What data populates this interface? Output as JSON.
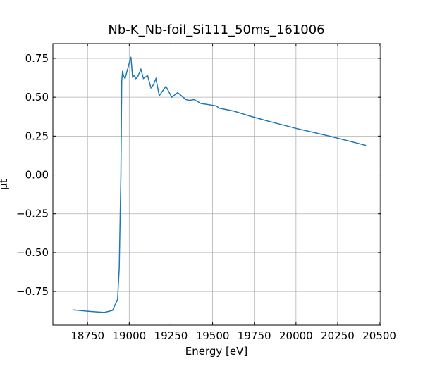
{
  "chart_data": {
    "type": "line",
    "title": "Nb-K_Nb-foil_Si111_50ms_161006",
    "x_label": "Energy [eV]",
    "y_label": "μt",
    "series": [
      {
        "name": "μt",
        "color": "#1f77b4",
        "x": [
          18660,
          18750,
          18850,
          18900,
          18930,
          18940,
          18950,
          18955,
          18960,
          18965,
          18975,
          18990,
          19010,
          19020,
          19030,
          19040,
          19050,
          19070,
          19085,
          19110,
          19130,
          19145,
          19160,
          19180,
          19200,
          19220,
          19240,
          19255,
          19290,
          19340,
          19360,
          19390,
          19430,
          19520,
          19540,
          19630,
          19720,
          19820,
          20000,
          20200,
          20420
        ],
        "values": [
          -0.868,
          -0.877,
          -0.885,
          -0.872,
          -0.8,
          -0.6,
          0.0,
          0.6,
          0.67,
          0.64,
          0.62,
          0.68,
          0.76,
          0.63,
          0.64,
          0.62,
          0.63,
          0.68,
          0.62,
          0.64,
          0.56,
          0.58,
          0.62,
          0.51,
          0.54,
          0.57,
          0.53,
          0.5,
          0.53,
          0.485,
          0.48,
          0.485,
          0.46,
          0.445,
          0.43,
          0.41,
          0.38,
          0.35,
          0.3,
          0.25,
          0.19
        ]
      }
    ],
    "xlim": [
      18542,
      20508
    ],
    "ylim": [
      -0.967,
      0.845
    ],
    "xticks": [
      18750,
      19000,
      19250,
      19500,
      19750,
      20000,
      20250,
      20500
    ],
    "yticks": [
      {
        "value": -0.75,
        "label": "−0.75"
      },
      {
        "value": -0.5,
        "label": "−0.50"
      },
      {
        "value": -0.25,
        "label": "−0.25"
      },
      {
        "value": 0,
        "label": "0.00"
      },
      {
        "value": 0.25,
        "label": "0.25"
      },
      {
        "value": 0.5,
        "label": "0.50"
      },
      {
        "value": 0.75,
        "label": "0.75"
      }
    ],
    "grid": true
  }
}
